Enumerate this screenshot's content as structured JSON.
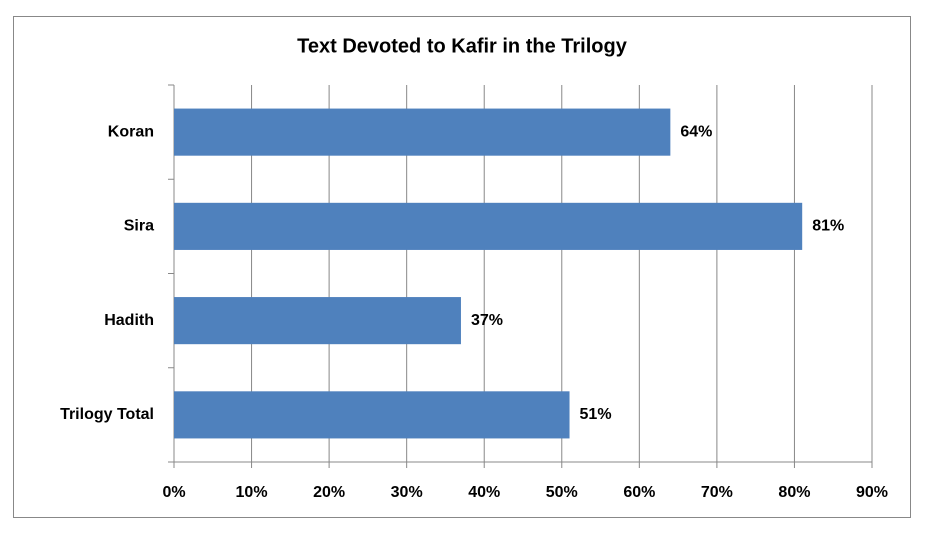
{
  "chart_data": {
    "type": "bar",
    "orientation": "horizontal",
    "title": "Text Devoted to Kafir in the Trilogy",
    "categories": [
      "Koran",
      "Sira",
      "Hadith",
      "Trilogy Total"
    ],
    "values": [
      64,
      81,
      37,
      51
    ],
    "value_labels": [
      "64%",
      "81%",
      "37%",
      "51%"
    ],
    "color": "#4f81bd",
    "xlim": [
      0,
      90
    ],
    "xticks": [
      {
        "value": 0,
        "label": "0%"
      },
      {
        "value": 10,
        "label": "10%"
      },
      {
        "value": 20,
        "label": "20%"
      },
      {
        "value": 30,
        "label": "30%"
      },
      {
        "value": 40,
        "label": "40%"
      },
      {
        "value": 50,
        "label": "50%"
      },
      {
        "value": 60,
        "label": "60%"
      },
      {
        "value": 70,
        "label": "70%"
      },
      {
        "value": 80,
        "label": "80%"
      },
      {
        "value": 90,
        "label": "90%"
      }
    ],
    "grid": true
  }
}
